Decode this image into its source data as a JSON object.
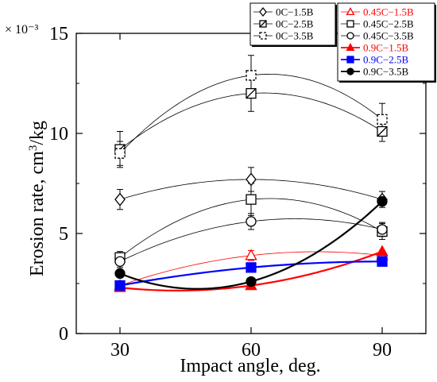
{
  "chart_data": {
    "type": "line",
    "xlabel": "Impact angle, deg.",
    "ylabel": "Erosion rate, cm3/kg",
    "ylabel_main": "Erosion rate, cm",
    "ylabel_sup": "3",
    "ylabel_tail": "/kg",
    "y_multiplier": "× 10⁻³",
    "x_ticks": [
      30,
      60,
      90
    ],
    "y_ticks": [
      0,
      5,
      10,
      15
    ],
    "xlim": [
      20,
      100
    ],
    "ylim": [
      0,
      15
    ],
    "grid": false,
    "legend_placement": "top-right (two boxes)",
    "series": [
      {
        "name": "0C−1.5B",
        "x": [
          30,
          60,
          90
        ],
        "y": [
          6.7,
          7.7,
          6.7
        ],
        "yerr": [
          0.5,
          0.6,
          0.4
        ],
        "marker": "diamond",
        "filled": false,
        "color": "#000000",
        "linewidth": 0.8,
        "legend_box": 1
      },
      {
        "name": "0C−2.5B",
        "x": [
          30,
          60,
          90
        ],
        "y": [
          9.2,
          12.0,
          10.1
        ],
        "yerr": [
          0.9,
          0.9,
          0.5
        ],
        "marker": "square-half",
        "filled": false,
        "color": "#000000",
        "linewidth": 0.8,
        "legend_box": 1
      },
      {
        "name": "0C−3.5B",
        "x": [
          30,
          60,
          90
        ],
        "y": [
          9.0,
          12.9,
          10.7
        ],
        "yerr": [
          0.6,
          1.0,
          0.8
        ],
        "marker": "square-dashed",
        "filled": false,
        "color": "#000000",
        "linewidth": 0.8,
        "legend_box": 1
      },
      {
        "name": "0.45C−1.5B",
        "x": [
          30,
          60,
          90
        ],
        "y": [
          2.4,
          3.9,
          3.9
        ],
        "yerr": [
          0.15,
          0.25,
          0.2
        ],
        "marker": "triangle",
        "filled": false,
        "color": "#ff0000",
        "linewidth": 0.8,
        "legend_box": 2
      },
      {
        "name": "0.45C−2.5B",
        "x": [
          30,
          60,
          90
        ],
        "y": [
          3.8,
          6.7,
          5.1
        ],
        "yerr": [
          0.3,
          0.8,
          0.4
        ],
        "marker": "square",
        "filled": false,
        "color": "#000000",
        "linewidth": 0.8,
        "legend_box": 2
      },
      {
        "name": "0.45C−3.5B",
        "x": [
          30,
          60,
          90
        ],
        "y": [
          3.6,
          5.6,
          5.2
        ],
        "yerr": [
          0.3,
          0.4,
          0.35
        ],
        "marker": "circle",
        "filled": false,
        "color": "#000000",
        "linewidth": 0.8,
        "legend_box": 2
      },
      {
        "name": "0.9C−1.5B",
        "x": [
          30,
          60,
          90
        ],
        "y": [
          2.3,
          2.4,
          4.1
        ],
        "yerr": [
          0,
          0,
          0
        ],
        "marker": "triangle",
        "filled": true,
        "color": "#ff0000",
        "linewidth": 2.2,
        "legend_box": 2
      },
      {
        "name": "0.9C−2.5B",
        "x": [
          30,
          60,
          90
        ],
        "y": [
          2.4,
          3.3,
          3.6
        ],
        "yerr": [
          0,
          0,
          0
        ],
        "marker": "square",
        "filled": true,
        "color": "#0000ff",
        "linewidth": 2.2,
        "legend_box": 2
      },
      {
        "name": "0.9C−3.5B",
        "x": [
          30,
          60,
          90
        ],
        "y": [
          3.0,
          2.6,
          6.6
        ],
        "yerr": [
          0,
          0,
          0
        ],
        "marker": "circle",
        "filled": true,
        "color": "#000000",
        "linewidth": 2.2,
        "legend_box": 2
      }
    ]
  }
}
